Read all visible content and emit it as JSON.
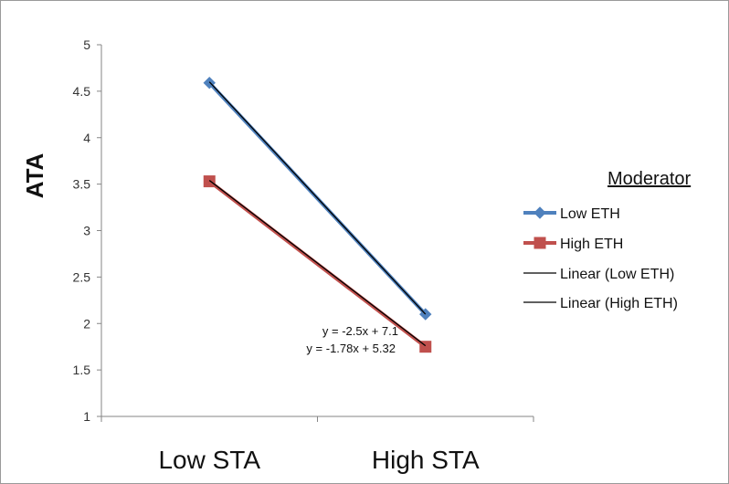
{
  "chart_data": {
    "type": "line",
    "ylabel": "ATA",
    "categories": [
      "Low STA",
      "High STA"
    ],
    "ylim": [
      1,
      5
    ],
    "yticks": [
      "1",
      "1.5",
      "2",
      "2.5",
      "3",
      "3.5",
      "4",
      "4.5",
      "5"
    ],
    "grid": false,
    "legend": {
      "title": "Moderator",
      "placement": "right",
      "entries": [
        "Low ETH",
        "High ETH",
        "Linear (Low ETH)",
        "Linear (High ETH)"
      ]
    },
    "series": [
      {
        "name": "Low ETH",
        "values": [
          4.59,
          2.1
        ],
        "color": "#4f81bd",
        "marker": "diamond"
      },
      {
        "name": "High ETH",
        "values": [
          3.53,
          1.75
        ],
        "color": "#c0504d",
        "marker": "square"
      }
    ],
    "trendlines": [
      {
        "name": "Linear (Low ETH)",
        "slope": -2.5,
        "intercept": 7.1,
        "equation": "y = -2.5x + 7.1",
        "color": "#000000"
      },
      {
        "name": "Linear (High ETH)",
        "slope": -1.78,
        "intercept": 5.32,
        "equation": "y = -1.78x + 5.32",
        "color": "#000000"
      }
    ]
  }
}
